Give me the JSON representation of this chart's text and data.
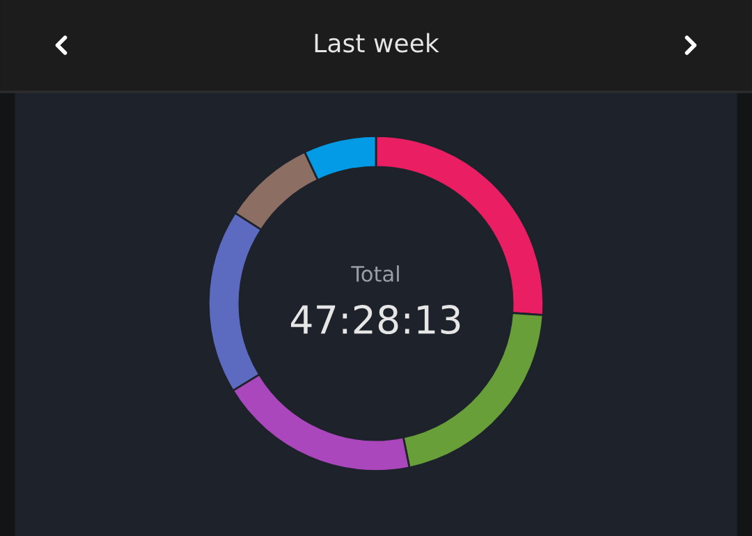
{
  "chart_data": {
    "type": "donut",
    "title": "Last week",
    "categories": [
      null,
      null,
      null,
      null,
      null,
      null
    ],
    "values": [
      26.1,
      20.7,
      19.5,
      17.8,
      8.9,
      7.0
    ],
    "colors": [
      "#e91e63",
      "#689f38",
      "#ab47bc",
      "#5c6bc0",
      "#8d6e63",
      "#039be5"
    ],
    "annotations": [
      "Total",
      "47:28:13"
    ]
  }
}
